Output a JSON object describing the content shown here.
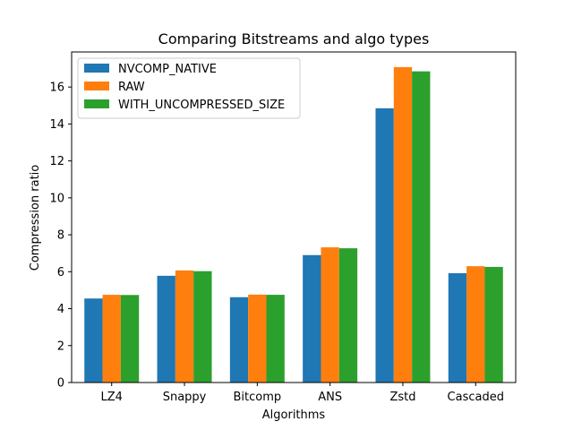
{
  "chart_data": {
    "type": "bar",
    "title": "Comparing Bitstreams and algo types",
    "xlabel": "Algorithms",
    "ylabel": "Compression ratio",
    "categories": [
      "LZ4",
      "Snappy",
      "Bitcomp",
      "ANS",
      "Zstd",
      "Cascaded"
    ],
    "series": [
      {
        "name": "NVCOMP_NATIVE",
        "color": "#1f77b4",
        "values": [
          4.55,
          5.78,
          4.62,
          6.9,
          14.85,
          5.92
        ]
      },
      {
        "name": "RAW",
        "color": "#ff7f0e",
        "values": [
          4.75,
          6.07,
          4.76,
          7.32,
          17.08,
          6.3
        ]
      },
      {
        "name": "WITH_UNCOMPRESSED_SIZE",
        "color": "#2ca02c",
        "values": [
          4.74,
          6.03,
          4.75,
          7.27,
          16.85,
          6.26
        ]
      }
    ],
    "ylim": [
      0,
      17.9
    ],
    "yticks": [
      0,
      2,
      4,
      6,
      8,
      10,
      12,
      14,
      16
    ],
    "grid": false,
    "legend_position": "top-left"
  }
}
